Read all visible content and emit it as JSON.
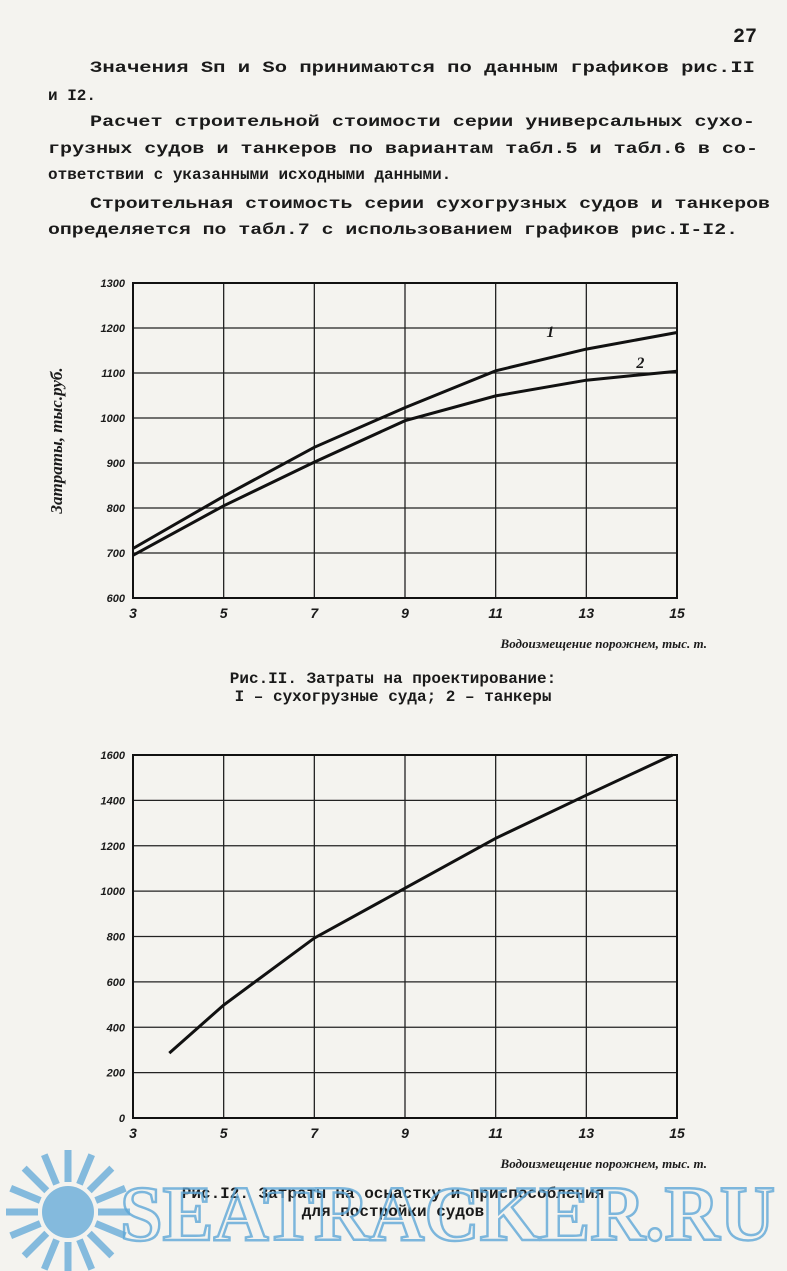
{
  "page_number": "27",
  "text_lines": [
    "Значения Sп и Sо принимаются по данным графиков рис.II",
    "и I2.",
    "Расчет строительной стоимости серии универсальных сухо-",
    "грузных судов и танкеров по вариантам табл.5 и табл.6 в со-",
    "ответствии с указанными исходными данными.",
    "Строительная стоимость серии сухогрузных судов и танкеров",
    "определяется по табл.7 с использованием графиков рис.I-I2."
  ],
  "chart_data": [
    {
      "type": "line",
      "ylabel": "Затраты, тыс.руб.",
      "xlabel": "Водоизмещение порожнем, тыс. т.",
      "caption": [
        "Рис.II. Затраты на проектирование:",
        "I – сухогрузные суда; 2 – танкеры"
      ],
      "xlim": [
        3,
        15
      ],
      "xticks": [
        3,
        5,
        7,
        9,
        11,
        13,
        15
      ],
      "ylim": [
        600,
        1300
      ],
      "yticks": [
        600,
        700,
        800,
        900,
        1000,
        1100,
        1200,
        1300
      ],
      "grid": true,
      "series": [
        {
          "name": "1",
          "color": "#111111",
          "x": [
            3,
            5,
            7,
            9,
            11,
            13,
            15
          ],
          "values": [
            710,
            826,
            935,
            1023,
            1105,
            1153,
            1190
          ]
        },
        {
          "name": "2",
          "color": "#111111",
          "x": [
            3,
            5,
            7,
            9,
            11,
            13,
            15
          ],
          "values": [
            695,
            805,
            902,
            994,
            1049,
            1084,
            1104
          ]
        }
      ]
    },
    {
      "type": "line",
      "xlabel": "Водоизмещение порожнем, тыс. т.",
      "caption": [
        "Рис.I2. Затраты на оснастку и приспособления",
        "для постройки судов"
      ],
      "xlim": [
        3,
        15
      ],
      "xticks": [
        3,
        5,
        7,
        9,
        11,
        13,
        15
      ],
      "ylim": [
        0,
        1600
      ],
      "yticks": [
        0,
        200,
        400,
        600,
        800,
        1000,
        1200,
        1400,
        1600
      ],
      "grid": true,
      "series": [
        {
          "color": "#111111",
          "x": [
            3.8,
            5,
            7,
            9,
            11,
            13,
            14.9
          ],
          "values": [
            286,
            498,
            793,
            1013,
            1233,
            1423,
            1600
          ]
        }
      ]
    }
  ],
  "watermark": "SEATRACKER.RU"
}
